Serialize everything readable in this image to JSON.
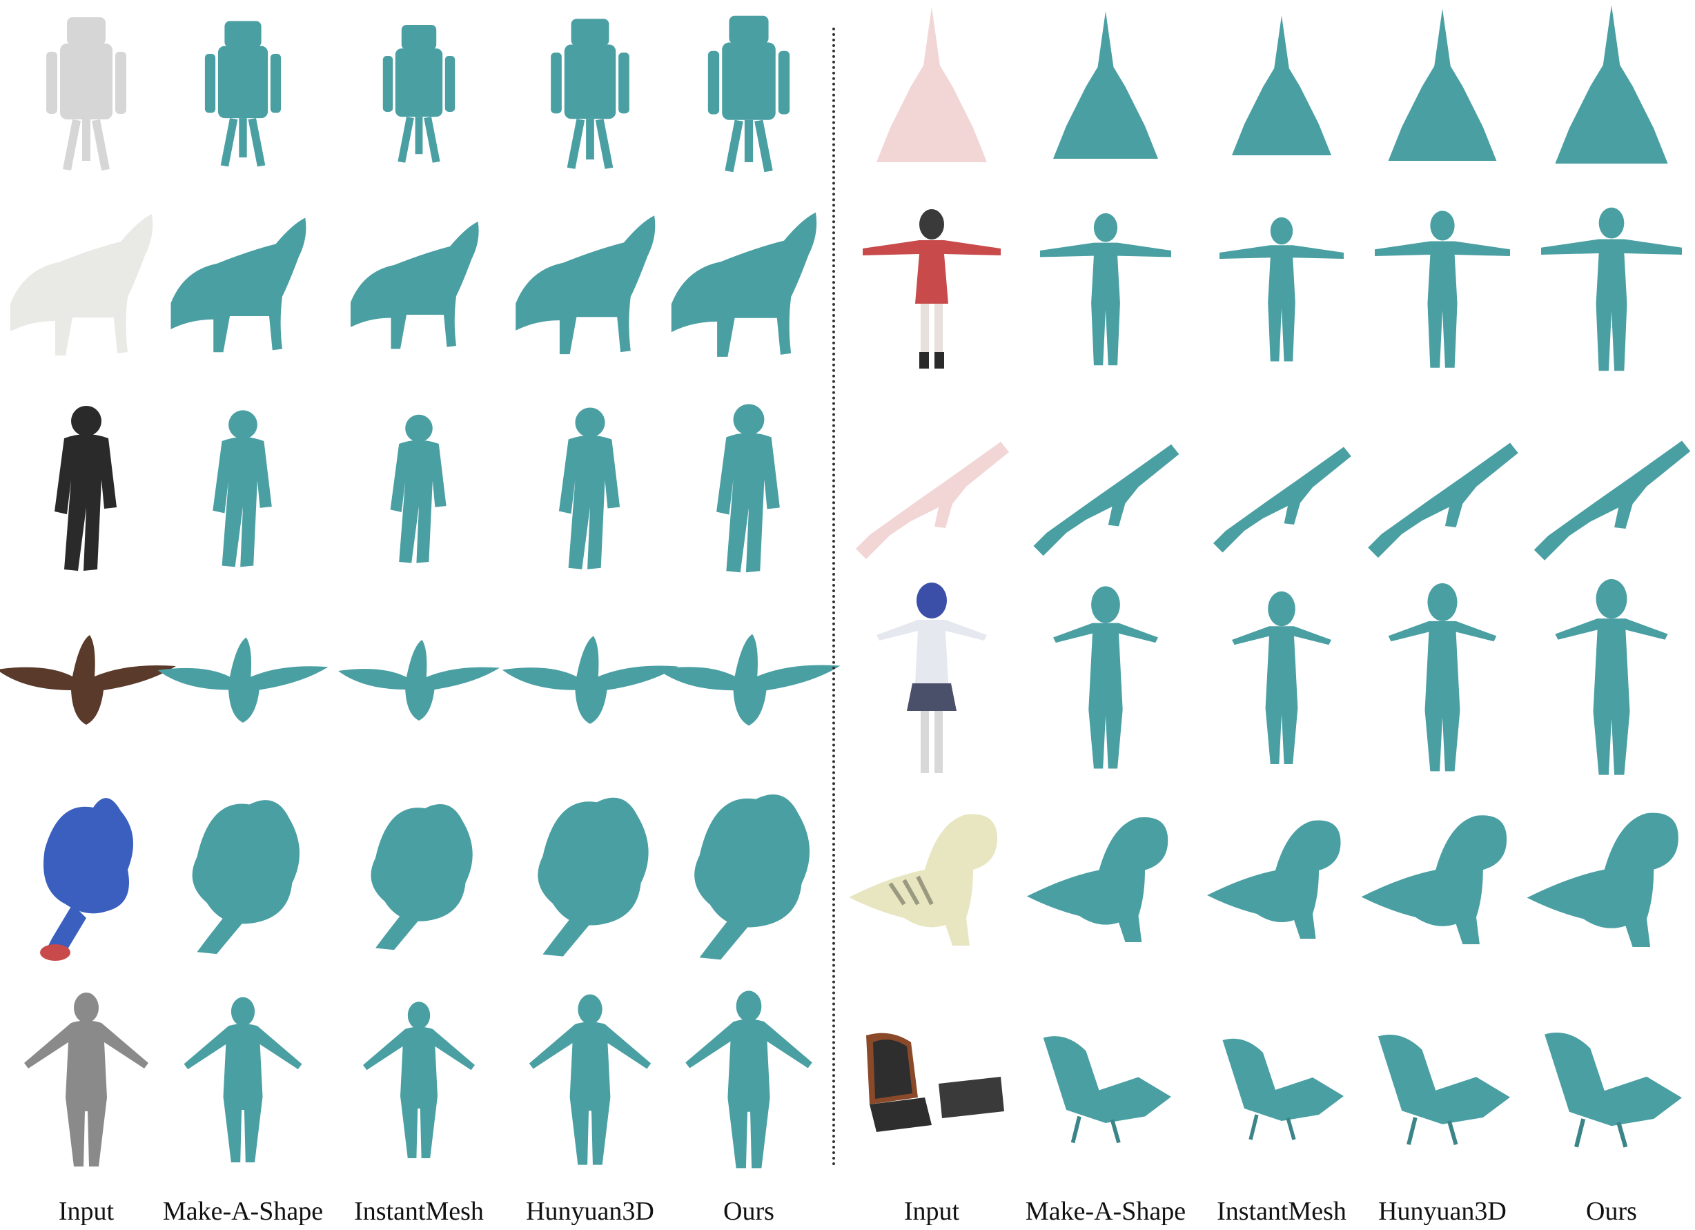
{
  "colors": {
    "mesh": "#4a9fa3",
    "mesh_shade": "#3b8589",
    "mesh_light": "#62b3b6",
    "input_gray": "#d6d6d6",
    "input_dark": "#2a2a2a",
    "input_skin": "#5a3a2a",
    "input_blue": "#3a5fbf",
    "input_red": "#c84a4a",
    "input_cream": "#e8e6c0",
    "input_pink": "#f2d6d6"
  },
  "left_panel": {
    "column_labels": [
      "Input",
      "Make-A-Shape",
      "InstantMesh",
      "Hunyuan3D",
      "Ours"
    ],
    "rows": [
      {
        "subject": "robot"
      },
      {
        "subject": "wolf"
      },
      {
        "subject": "soldier"
      },
      {
        "subject": "bird"
      },
      {
        "subject": "hedgehog"
      },
      {
        "subject": "woman"
      }
    ]
  },
  "right_panel": {
    "column_labels": [
      "Input",
      "Make-A-Shape",
      "InstantMesh",
      "Hunyuan3D",
      "Ours"
    ],
    "rows": [
      {
        "subject": "pagoda"
      },
      {
        "subject": "girl-tpose"
      },
      {
        "subject": "rifle"
      },
      {
        "subject": "schoolgirl"
      },
      {
        "subject": "dinosaur"
      },
      {
        "subject": "lounge-chair"
      }
    ]
  }
}
